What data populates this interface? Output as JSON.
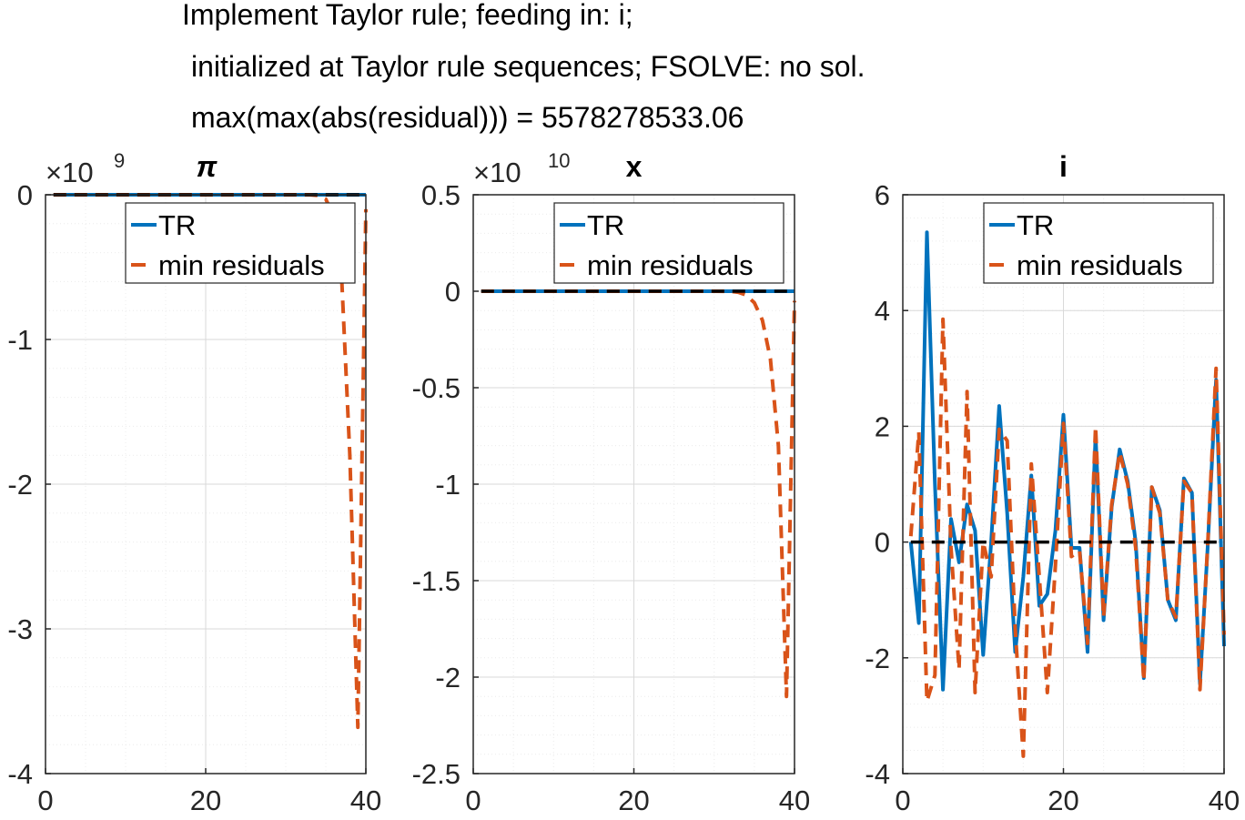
{
  "suptitle": {
    "line1": "Implement Taylor rule; feeding in: i;",
    "line2": "initialized at Taylor rule sequences; FSOLVE: no sol.",
    "line3": "max(max(abs(residual))) = 5578278533.06"
  },
  "colors": {
    "tr": "#0072BD",
    "min_residuals": "#D95319",
    "zero_line": "#000000",
    "grid": "#d9d9d9",
    "axis": "#262626"
  },
  "chart_data": [
    {
      "type": "line",
      "title": "π",
      "exponent_label": "×10",
      "exponent_power": "9",
      "xlim": [
        0,
        40
      ],
      "ylim": [
        -4,
        0
      ],
      "xticks": [
        0,
        20,
        40
      ],
      "xtick_labels": [
        "0",
        "20",
        "40"
      ],
      "yticks": [
        0,
        -1,
        -2,
        -3,
        -4
      ],
      "ytick_labels": [
        "0",
        "-1",
        "-2",
        "-3",
        "-4"
      ],
      "grid": true,
      "legend": {
        "placement": "top-right",
        "entries": [
          "TR",
          "min residuals"
        ]
      },
      "series": [
        {
          "name": "TR",
          "style": "solid",
          "x": [
            1,
            40
          ],
          "y": [
            0,
            0
          ]
        },
        {
          "name": "min residuals",
          "style": "dashed",
          "x": [
            1,
            5,
            10,
            15,
            20,
            25,
            30,
            33,
            34,
            35,
            36,
            37,
            38,
            39,
            40
          ],
          "y": [
            0,
            0,
            0,
            0,
            0,
            0,
            0,
            0,
            -0.005,
            -0.03,
            -0.15,
            -0.6,
            -1.8,
            -3.68,
            -0.1
          ]
        },
        {
          "name": "",
          "style": "zero-dashed",
          "x": [
            1,
            40
          ],
          "y": [
            0,
            0
          ]
        }
      ]
    },
    {
      "type": "line",
      "title": "x",
      "exponent_label": "×10",
      "exponent_power": "10",
      "xlim": [
        0,
        40
      ],
      "ylim": [
        -2.5,
        0.5
      ],
      "xticks": [
        0,
        20,
        40
      ],
      "xtick_labels": [
        "0",
        "20",
        "40"
      ],
      "yticks": [
        0.5,
        0,
        -0.5,
        -1,
        -1.5,
        -2,
        -2.5
      ],
      "ytick_labels": [
        "0.5",
        "0",
        "-0.5",
        "-1",
        "-1.5",
        "-2",
        "-2.5"
      ],
      "grid": true,
      "legend": {
        "placement": "top-right",
        "entries": [
          "TR",
          "min residuals"
        ]
      },
      "series": [
        {
          "name": "TR",
          "style": "solid",
          "x": [
            1,
            40
          ],
          "y": [
            0,
            0
          ]
        },
        {
          "name": "min residuals",
          "style": "dashed",
          "x": [
            1,
            5,
            10,
            15,
            20,
            25,
            30,
            32,
            33,
            34,
            35,
            36,
            37,
            38,
            39,
            40
          ],
          "y": [
            0,
            0,
            0,
            0,
            0,
            0,
            0,
            -0.001,
            -0.005,
            -0.02,
            -0.06,
            -0.15,
            -0.35,
            -0.8,
            -2.1,
            -0.05
          ]
        },
        {
          "name": "",
          "style": "zero-dashed",
          "x": [
            1,
            40
          ],
          "y": [
            0,
            0
          ]
        }
      ]
    },
    {
      "type": "line",
      "title": "i",
      "exponent_label": "",
      "exponent_power": "",
      "xlim": [
        0,
        40
      ],
      "ylim": [
        -4,
        6
      ],
      "xticks": [
        0,
        20,
        40
      ],
      "xtick_labels": [
        "0",
        "20",
        "40"
      ],
      "yticks": [
        6,
        4,
        2,
        0,
        -2,
        -4
      ],
      "ytick_labels": [
        "6",
        "4",
        "2",
        "0",
        "-2",
        "-4"
      ],
      "grid": true,
      "legend": {
        "placement": "top-right",
        "entries": [
          "TR",
          "min residuals"
        ]
      },
      "series": [
        {
          "name": "TR",
          "style": "solid",
          "x": [
            1,
            2,
            3,
            4,
            5,
            6,
            7,
            8,
            9,
            10,
            11,
            12,
            13,
            14,
            15,
            16,
            17,
            18,
            19,
            20,
            21,
            22,
            23,
            24,
            25,
            26,
            27,
            28,
            29,
            30,
            31,
            32,
            33,
            34,
            35,
            36,
            37,
            38,
            39,
            40
          ],
          "y": [
            0,
            -1.4,
            5.35,
            1.0,
            -2.55,
            0.4,
            -0.35,
            0.65,
            0.2,
            -1.95,
            0.0,
            2.35,
            0.5,
            -1.9,
            -0.6,
            1.15,
            -1.1,
            -0.9,
            0.2,
            2.2,
            -0.1,
            -0.1,
            -1.9,
            1.85,
            -1.35,
            0.6,
            1.6,
            1.05,
            0.0,
            -2.35,
            0.95,
            0.55,
            -1.0,
            -1.35,
            1.1,
            0.85,
            -2.45,
            0.0,
            2.8,
            -1.8
          ]
        },
        {
          "name": "min residuals",
          "style": "dashed",
          "x": [
            1,
            2,
            3,
            4,
            5,
            6,
            7,
            8,
            9,
            10,
            11,
            12,
            13,
            14,
            15,
            16,
            17,
            18,
            19,
            20,
            21,
            22,
            23,
            24,
            25,
            26,
            27,
            28,
            29,
            30,
            31,
            32,
            33,
            34,
            35,
            36,
            37,
            38,
            39,
            40
          ],
          "y": [
            0.1,
            1.9,
            -2.75,
            -2.3,
            3.85,
            -0.1,
            -2.2,
            2.6,
            -2.6,
            0.0,
            -0.6,
            1.95,
            1.75,
            -1.5,
            -3.7,
            1.35,
            -0.6,
            -2.6,
            -0.4,
            2.05,
            -0.25,
            -0.15,
            -1.75,
            2.0,
            -1.3,
            0.65,
            1.55,
            1.0,
            -0.1,
            -2.4,
            0.95,
            0.5,
            -1.0,
            -1.3,
            1.05,
            0.85,
            -2.55,
            0.05,
            3.0,
            -1.6
          ]
        },
        {
          "name": "",
          "style": "zero-dashed",
          "x": [
            1,
            40
          ],
          "y": [
            0,
            0
          ]
        }
      ]
    }
  ]
}
